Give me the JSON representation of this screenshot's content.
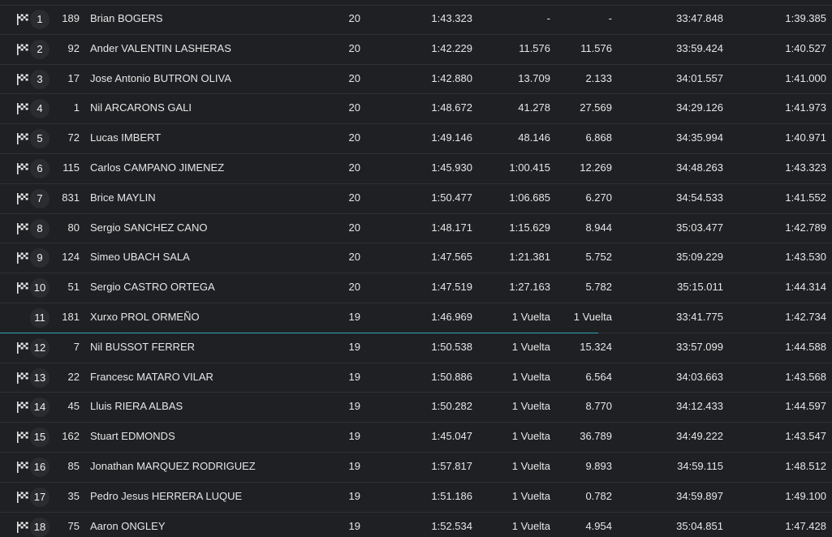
{
  "colors": {
    "background": "#1f2023",
    "divider": "#2e3034",
    "highlight_line": "#2fa7b8",
    "text": "#e6e6e6"
  },
  "rows": [
    {
      "pos": "1",
      "num": "189",
      "name": "Brian BOGERS",
      "laps": "20",
      "best": "1:43.323",
      "gap1": "-",
      "gap2": "-",
      "total": "33:47.848",
      "lap": "1:39.385",
      "flag": true
    },
    {
      "pos": "2",
      "num": "92",
      "name": "Ander VALENTIN LASHERAS",
      "laps": "20",
      "best": "1:42.229",
      "gap1": "11.576",
      "gap2": "11.576",
      "total": "33:59.424",
      "lap": "1:40.527",
      "flag": true
    },
    {
      "pos": "3",
      "num": "17",
      "name": "Jose Antonio BUTRON OLIVA",
      "laps": "20",
      "best": "1:42.880",
      "gap1": "13.709",
      "gap2": "2.133",
      "total": "34:01.557",
      "lap": "1:41.000",
      "flag": true
    },
    {
      "pos": "4",
      "num": "1",
      "name": "Nil ARCARONS GALI",
      "laps": "20",
      "best": "1:48.672",
      "gap1": "41.278",
      "gap2": "27.569",
      "total": "34:29.126",
      "lap": "1:41.973",
      "flag": true
    },
    {
      "pos": "5",
      "num": "72",
      "name": "Lucas IMBERT",
      "laps": "20",
      "best": "1:49.146",
      "gap1": "48.146",
      "gap2": "6.868",
      "total": "34:35.994",
      "lap": "1:40.971",
      "flag": true
    },
    {
      "pos": "6",
      "num": "115",
      "name": "Carlos CAMPANO JIMENEZ",
      "laps": "20",
      "best": "1:45.930",
      "gap1": "1:00.415",
      "gap2": "12.269",
      "total": "34:48.263",
      "lap": "1:43.323",
      "flag": true
    },
    {
      "pos": "7",
      "num": "831",
      "name": "Brice MAYLIN",
      "laps": "20",
      "best": "1:50.477",
      "gap1": "1:06.685",
      "gap2": "6.270",
      "total": "34:54.533",
      "lap": "1:41.552",
      "flag": true
    },
    {
      "pos": "8",
      "num": "80",
      "name": "Sergio SANCHEZ CANO",
      "laps": "20",
      "best": "1:48.171",
      "gap1": "1:15.629",
      "gap2": "8.944",
      "total": "35:03.477",
      "lap": "1:42.789",
      "flag": true
    },
    {
      "pos": "9",
      "num": "124",
      "name": "Simeo UBACH SALA",
      "laps": "20",
      "best": "1:47.565",
      "gap1": "1:21.381",
      "gap2": "5.752",
      "total": "35:09.229",
      "lap": "1:43.530",
      "flag": true
    },
    {
      "pos": "10",
      "num": "51",
      "name": "Sergio CASTRO ORTEGA",
      "laps": "20",
      "best": "1:47.519",
      "gap1": "1:27.163",
      "gap2": "5.782",
      "total": "35:15.011",
      "lap": "1:44.314",
      "flag": true
    },
    {
      "pos": "11",
      "num": "181",
      "name": "Xurxo PROL ORMEÑO",
      "laps": "19",
      "best": "1:46.969",
      "gap1": "1 Vuelta",
      "gap2": "1 Vuelta",
      "total": "33:41.775",
      "lap": "1:42.734",
      "flag": false
    },
    {
      "pos": "12",
      "num": "7",
      "name": "Nil BUSSOT FERRER",
      "laps": "19",
      "best": "1:50.538",
      "gap1": "1 Vuelta",
      "gap2": "15.324",
      "total": "33:57.099",
      "lap": "1:44.588",
      "flag": true
    },
    {
      "pos": "13",
      "num": "22",
      "name": "Francesc MATARO VILAR",
      "laps": "19",
      "best": "1:50.886",
      "gap1": "1 Vuelta",
      "gap2": "6.564",
      "total": "34:03.663",
      "lap": "1:43.568",
      "flag": true
    },
    {
      "pos": "14",
      "num": "45",
      "name": "Lluis RIERA ALBAS",
      "laps": "19",
      "best": "1:50.282",
      "gap1": "1 Vuelta",
      "gap2": "8.770",
      "total": "34:12.433",
      "lap": "1:44.597",
      "flag": true
    },
    {
      "pos": "15",
      "num": "162",
      "name": "Stuart EDMONDS",
      "laps": "19",
      "best": "1:45.047",
      "gap1": "1 Vuelta",
      "gap2": "36.789",
      "total": "34:49.222",
      "lap": "1:43.547",
      "flag": true
    },
    {
      "pos": "16",
      "num": "85",
      "name": "Jonathan MARQUEZ RODRIGUEZ",
      "laps": "19",
      "best": "1:57.817",
      "gap1": "1 Vuelta",
      "gap2": "9.893",
      "total": "34:59.115",
      "lap": "1:48.512",
      "flag": true
    },
    {
      "pos": "17",
      "num": "35",
      "name": "Pedro Jesus HERRERA LUQUE",
      "laps": "19",
      "best": "1:51.186",
      "gap1": "1 Vuelta",
      "gap2": "0.782",
      "total": "34:59.897",
      "lap": "1:49.100",
      "flag": true
    },
    {
      "pos": "18",
      "num": "75",
      "name": "Aaron ONGLEY",
      "laps": "19",
      "best": "1:52.534",
      "gap1": "1 Vuelta",
      "gap2": "4.954",
      "total": "35:04.851",
      "lap": "1:47.428",
      "flag": true
    }
  ]
}
